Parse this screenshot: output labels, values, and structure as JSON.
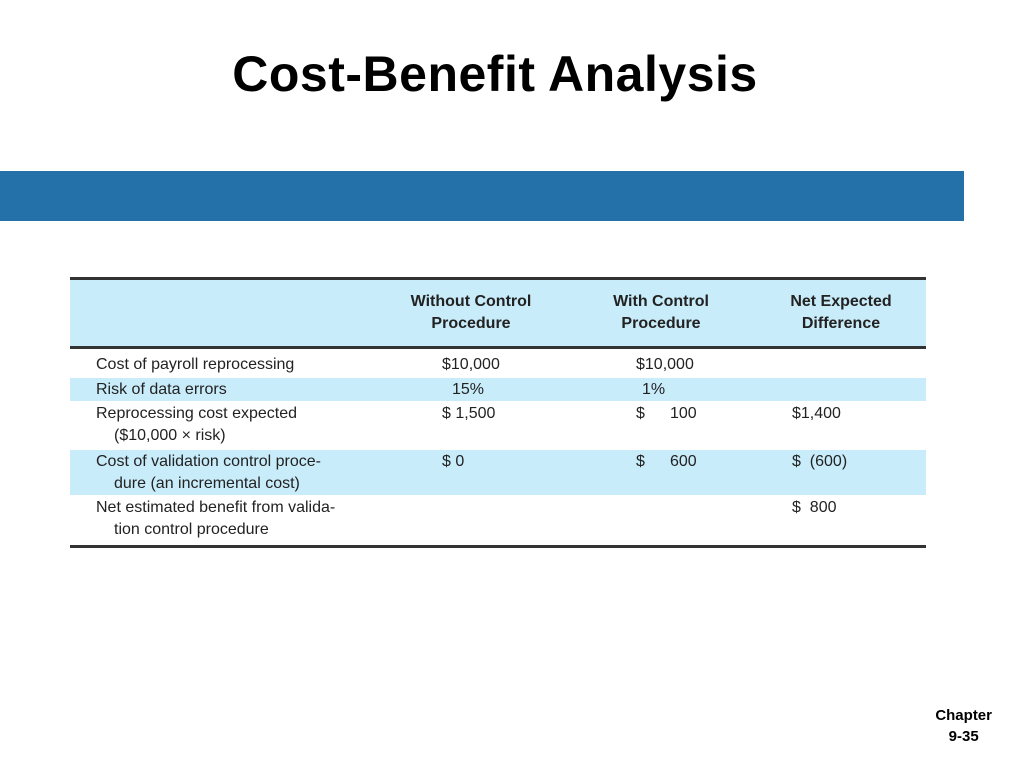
{
  "slide": {
    "title": "Cost-Benefit Analysis",
    "footer_line1": "Chapter",
    "footer_line2": "9-35",
    "band_color": "#2470a9"
  },
  "table": {
    "header_fill": "#c9ecfa",
    "columns": [
      "",
      "Without Control Procedure",
      "With Control Procedure",
      "Net Expected Difference"
    ],
    "header_lines": [
      [
        "Without Control",
        "Procedure"
      ],
      [
        "With Control",
        "Procedure"
      ],
      [
        "Net Expected",
        "Difference"
      ]
    ],
    "rows": [
      {
        "label_lines": [
          "Cost of payroll reprocessing"
        ],
        "without": "$10,000",
        "with_dollar": "",
        "with_value": "$10,000",
        "net": ""
      },
      {
        "label_lines": [
          "Risk of data errors"
        ],
        "without": "15%",
        "with_dollar": "",
        "with_value": "1%",
        "net": ""
      },
      {
        "label_lines": [
          "Reprocessing cost expected",
          "($10,000 × risk)"
        ],
        "without": "$ 1,500",
        "with_dollar": "$",
        "with_value": "100",
        "net": "$1,400"
      },
      {
        "label_lines": [
          "Cost of validation control proce-",
          "dure (an incremental cost)"
        ],
        "without": "$ 0",
        "with_dollar": "$",
        "with_value": "600",
        "net": "$  (600)"
      },
      {
        "label_lines": [
          "Net estimated benefit from valida-",
          "tion control procedure"
        ],
        "without": "",
        "with_dollar": "",
        "with_value": "",
        "net": "$  800"
      }
    ]
  }
}
